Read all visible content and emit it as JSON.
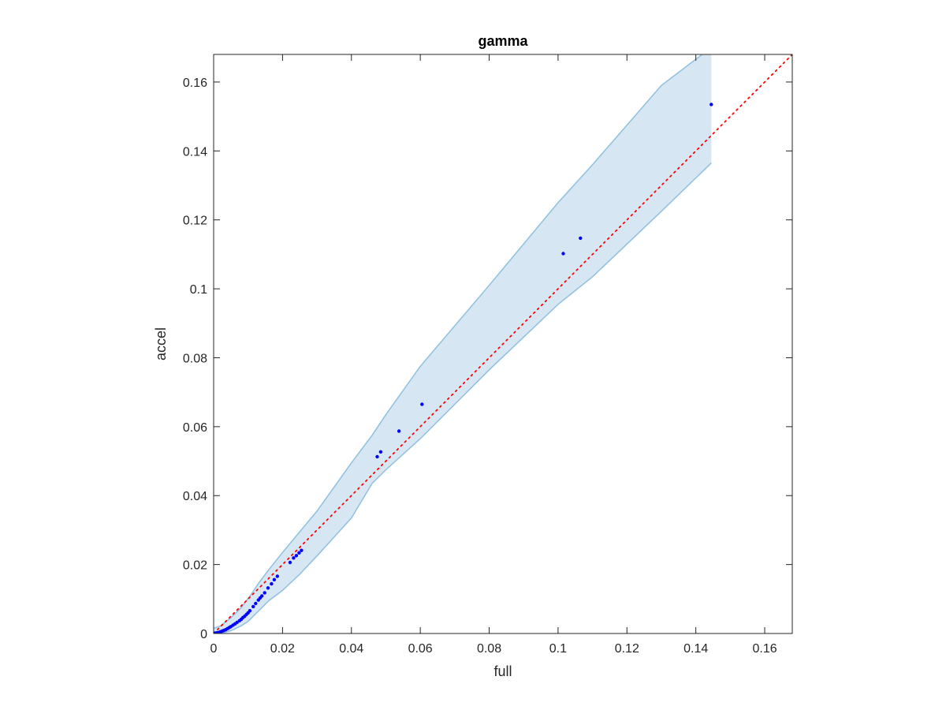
{
  "chart_data": {
    "type": "scatter",
    "title": "gamma",
    "xlabel": "full",
    "ylabel": "accel",
    "xlim": [
      0,
      0.168
    ],
    "ylim": [
      0,
      0.168
    ],
    "x_ticks": [
      0,
      0.02,
      0.04,
      0.06,
      0.08,
      0.1,
      0.12,
      0.14,
      0.16
    ],
    "x_tick_labels": [
      "0",
      "0.02",
      "0.04",
      "0.06",
      "0.08",
      "0.1",
      "0.12",
      "0.14",
      "0.16"
    ],
    "y_ticks": [
      0,
      0.02,
      0.04,
      0.06,
      0.08,
      0.1,
      0.12,
      0.14,
      0.16
    ],
    "y_tick_labels": [
      "0",
      "0.02",
      "0.04",
      "0.06",
      "0.08",
      "0.1",
      "0.12",
      "0.14",
      "0.16"
    ],
    "grid": false,
    "reference_line": {
      "x": [
        0,
        0.168
      ],
      "y": [
        0,
        0.168
      ],
      "color": "#ff0000",
      "style": "dotted"
    },
    "band": {
      "fill_color": "#d6e7f3",
      "edge_color": "#8fbfdf",
      "upper": [
        [
          0,
          0.0015
        ],
        [
          0.002,
          0.0022
        ],
        [
          0.005,
          0.0045
        ],
        [
          0.008,
          0.0075
        ],
        [
          0.011,
          0.0115
        ],
        [
          0.013,
          0.0145
        ],
        [
          0.016,
          0.0185
        ],
        [
          0.02,
          0.0235
        ],
        [
          0.025,
          0.0295
        ],
        [
          0.03,
          0.0355
        ],
        [
          0.04,
          0.0495
        ],
        [
          0.046,
          0.0575
        ],
        [
          0.05,
          0.0635
        ],
        [
          0.06,
          0.0775
        ],
        [
          0.08,
          0.101
        ],
        [
          0.1,
          0.125
        ],
        [
          0.11,
          0.136
        ],
        [
          0.13,
          0.159
        ],
        [
          0.1425,
          0.1685
        ],
        [
          0.1445,
          0.1685
        ]
      ],
      "lower": [
        [
          0,
          0
        ],
        [
          0.002,
          0
        ],
        [
          0.005,
          0.0008
        ],
        [
          0.008,
          0.0022
        ],
        [
          0.01,
          0.0035
        ],
        [
          0.013,
          0.0065
        ],
        [
          0.016,
          0.0095
        ],
        [
          0.02,
          0.0125
        ],
        [
          0.025,
          0.0172
        ],
        [
          0.03,
          0.0225
        ],
        [
          0.04,
          0.0335
        ],
        [
          0.046,
          0.0435
        ],
        [
          0.05,
          0.0475
        ],
        [
          0.06,
          0.0565
        ],
        [
          0.08,
          0.0765
        ],
        [
          0.1,
          0.0955
        ],
        [
          0.11,
          0.1035
        ],
        [
          0.13,
          0.1225
        ],
        [
          0.1445,
          0.1365
        ]
      ]
    },
    "series": [
      {
        "color": "#0000ff",
        "marker": "dot",
        "points": [
          [
            0.0001,
            0.0
          ],
          [
            0.0003,
            0.0001
          ],
          [
            0.0006,
            0.0001
          ],
          [
            0.001,
            0.0002
          ],
          [
            0.0015,
            0.0003
          ],
          [
            0.002,
            0.0005
          ],
          [
            0.0025,
            0.0007
          ],
          [
            0.003,
            0.0009
          ],
          [
            0.0035,
            0.0011
          ],
          [
            0.004,
            0.0014
          ],
          [
            0.0045,
            0.0017
          ],
          [
            0.005,
            0.002
          ],
          [
            0.0056,
            0.0024
          ],
          [
            0.0062,
            0.0028
          ],
          [
            0.0068,
            0.0032
          ],
          [
            0.0075,
            0.0037
          ],
          [
            0.008,
            0.0041
          ],
          [
            0.0085,
            0.0046
          ],
          [
            0.009,
            0.005
          ],
          [
            0.0095,
            0.0055
          ],
          [
            0.01,
            0.006
          ],
          [
            0.0105,
            0.0066
          ],
          [
            0.0115,
            0.0078
          ],
          [
            0.0122,
            0.0087
          ],
          [
            0.013,
            0.0097
          ],
          [
            0.0135,
            0.0103
          ],
          [
            0.014,
            0.0109
          ],
          [
            0.0148,
            0.0118
          ],
          [
            0.0158,
            0.0132
          ],
          [
            0.0168,
            0.0144
          ],
          [
            0.0176,
            0.0156
          ],
          [
            0.0185,
            0.0166
          ],
          [
            0.0222,
            0.0206
          ],
          [
            0.0232,
            0.0219
          ],
          [
            0.024,
            0.0226
          ],
          [
            0.0248,
            0.0234
          ],
          [
            0.0255,
            0.0241
          ],
          [
            0.0475,
            0.0513
          ],
          [
            0.0485,
            0.0527
          ],
          [
            0.0538,
            0.0587
          ],
          [
            0.0605,
            0.0665
          ],
          [
            0.1015,
            0.1102
          ],
          [
            0.1065,
            0.1147
          ],
          [
            0.1445,
            0.1535
          ]
        ]
      }
    ]
  }
}
